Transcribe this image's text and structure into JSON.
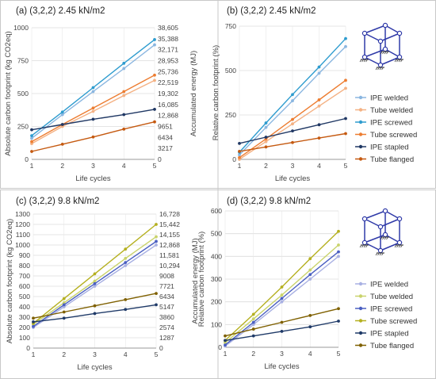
{
  "chart_data": [
    {
      "type": "line",
      "panel": "(a)",
      "title": "(a)  (3,2,2) 2.45 kN/m2",
      "xlabel": "Life cycles",
      "ylabel": "Absolute carbon footprint (kg CO2eq)",
      "y2label": "Accumulated energy (MJ)",
      "x": [
        1,
        2,
        3,
        4,
        5
      ],
      "ylim": [
        0,
        1000
      ],
      "yticks": [
        0,
        250,
        500,
        750,
        1000
      ],
      "y2ticks": [
        "0",
        "3217",
        "6434",
        "9651",
        "12,868",
        "16,085",
        "19,302",
        "22,519",
        "25,736",
        "28,953",
        "32,171",
        "35,388",
        "38,605"
      ],
      "grid": true,
      "legend": "none",
      "series": [
        {
          "name": "IPE welded",
          "color": "#8ab6e0",
          "values": [
            160,
            340,
            515,
            690,
            870
          ]
        },
        {
          "name": "Tube welded",
          "color": "#f4b183",
          "values": [
            120,
            250,
            365,
            485,
            600
          ]
        },
        {
          "name": "IPE screwed",
          "color": "#2e9ccf",
          "values": [
            180,
            360,
            545,
            730,
            910
          ]
        },
        {
          "name": "Tube screwed",
          "color": "#ed7d31",
          "values": [
            135,
            265,
            390,
            515,
            640
          ]
        },
        {
          "name": "IPE stapled",
          "color": "#203864",
          "values": [
            225,
            265,
            305,
            340,
            380
          ]
        },
        {
          "name": "Tube flanged",
          "color": "#c55a11",
          "values": [
            60,
            115,
            170,
            230,
            285
          ]
        }
      ]
    },
    {
      "type": "line",
      "panel": "(b)",
      "title": "(b)  (3,2,2) 2.45 kN/m2",
      "xlabel": "Life cycles",
      "ylabel": "Relative carbon footprint (%)",
      "x": [
        1,
        2,
        3,
        4,
        5
      ],
      "ylim": [
        0,
        750
      ],
      "yticks": [
        0,
        250,
        500,
        750
      ],
      "grid": true,
      "legend": "right",
      "series": [
        {
          "name": "IPE welded",
          "color": "#8ab6e0",
          "values": [
            25,
            180,
            330,
            485,
            635
          ]
        },
        {
          "name": "Tube welded",
          "color": "#f4b183",
          "values": [
            0,
            100,
            200,
            300,
            400
          ]
        },
        {
          "name": "IPE screwed",
          "color": "#2e9ccf",
          "values": [
            40,
            205,
            365,
            520,
            680
          ]
        },
        {
          "name": "Tube screwed",
          "color": "#ed7d31",
          "values": [
            10,
            115,
            225,
            335,
            445
          ]
        },
        {
          "name": "IPE stapled",
          "color": "#203864",
          "values": [
            90,
            125,
            160,
            195,
            230
          ]
        },
        {
          "name": "Tube flanged",
          "color": "#c55a11",
          "values": [
            45,
            70,
            95,
            120,
            145
          ]
        }
      ]
    },
    {
      "type": "line",
      "panel": "(c)",
      "title": "(c)  (3,2,2) 9.8 kN/m2",
      "xlabel": "Life cycles",
      "ylabel": "Absolute carbon footprint (kg CO2eq)",
      "y2label": "Accumulated energy (MJ)",
      "x": [
        1,
        2,
        3,
        4,
        5
      ],
      "ylim": [
        0,
        1300
      ],
      "yticks": [
        0,
        100,
        200,
        300,
        400,
        500,
        600,
        700,
        800,
        900,
        1000,
        1100,
        1200,
        1300
      ],
      "y2ticks": [
        "0",
        "1287",
        "2574",
        "3860",
        "5147",
        "6434",
        "7721",
        "9008",
        "10,294",
        "11,581",
        "12,868",
        "14,155",
        "15,442",
        "16,728"
      ],
      "grid": true,
      "legend": "none",
      "series": [
        {
          "name": "IPE welded",
          "color": "#a9b1e3",
          "values": [
            200,
            400,
            600,
            800,
            1000
          ]
        },
        {
          "name": "Tube welded",
          "color": "#c9d36b",
          "values": [
            230,
            440,
            650,
            870,
            1080
          ]
        },
        {
          "name": "IPE screwed",
          "color": "#4a5fc1",
          "values": [
            210,
            420,
            625,
            830,
            1035
          ]
        },
        {
          "name": "Tube screwed",
          "color": "#b5b020",
          "values": [
            240,
            480,
            720,
            960,
            1200
          ]
        },
        {
          "name": "IPE stapled",
          "color": "#1f3a68",
          "values": [
            255,
            290,
            335,
            375,
            420
          ]
        },
        {
          "name": "Tube flanged",
          "color": "#7f6000",
          "values": [
            290,
            350,
            410,
            470,
            530
          ]
        }
      ]
    },
    {
      "type": "line",
      "panel": "(d)",
      "title": "(d)  (3,2,2) 9.8 kN/m2",
      "xlabel": "Life cycles",
      "ylabel": "Relative carbon footprint (%)",
      "x": [
        1,
        2,
        3,
        4,
        5
      ],
      "ylim": [
        0,
        600
      ],
      "yticks": [
        0,
        100,
        200,
        300,
        400,
        500,
        600
      ],
      "grid": true,
      "legend": "right",
      "series": [
        {
          "name": "IPE welded",
          "color": "#a9b1e3",
          "values": [
            5,
            100,
            200,
            300,
            400
          ]
        },
        {
          "name": "Tube welded",
          "color": "#c9d36b",
          "values": [
            20,
            125,
            230,
            340,
            450
          ]
        },
        {
          "name": "IPE screwed",
          "color": "#4a5fc1",
          "values": [
            10,
            110,
            215,
            320,
            420
          ]
        },
        {
          "name": "Tube screwed",
          "color": "#b5b020",
          "values": [
            30,
            145,
            265,
            390,
            510
          ]
        },
        {
          "name": "IPE stapled",
          "color": "#1f3a68",
          "values": [
            30,
            50,
            70,
            90,
            115
          ]
        },
        {
          "name": "Tube flanged",
          "color": "#7f6000",
          "values": [
            50,
            80,
            110,
            140,
            170
          ]
        }
      ]
    }
  ]
}
